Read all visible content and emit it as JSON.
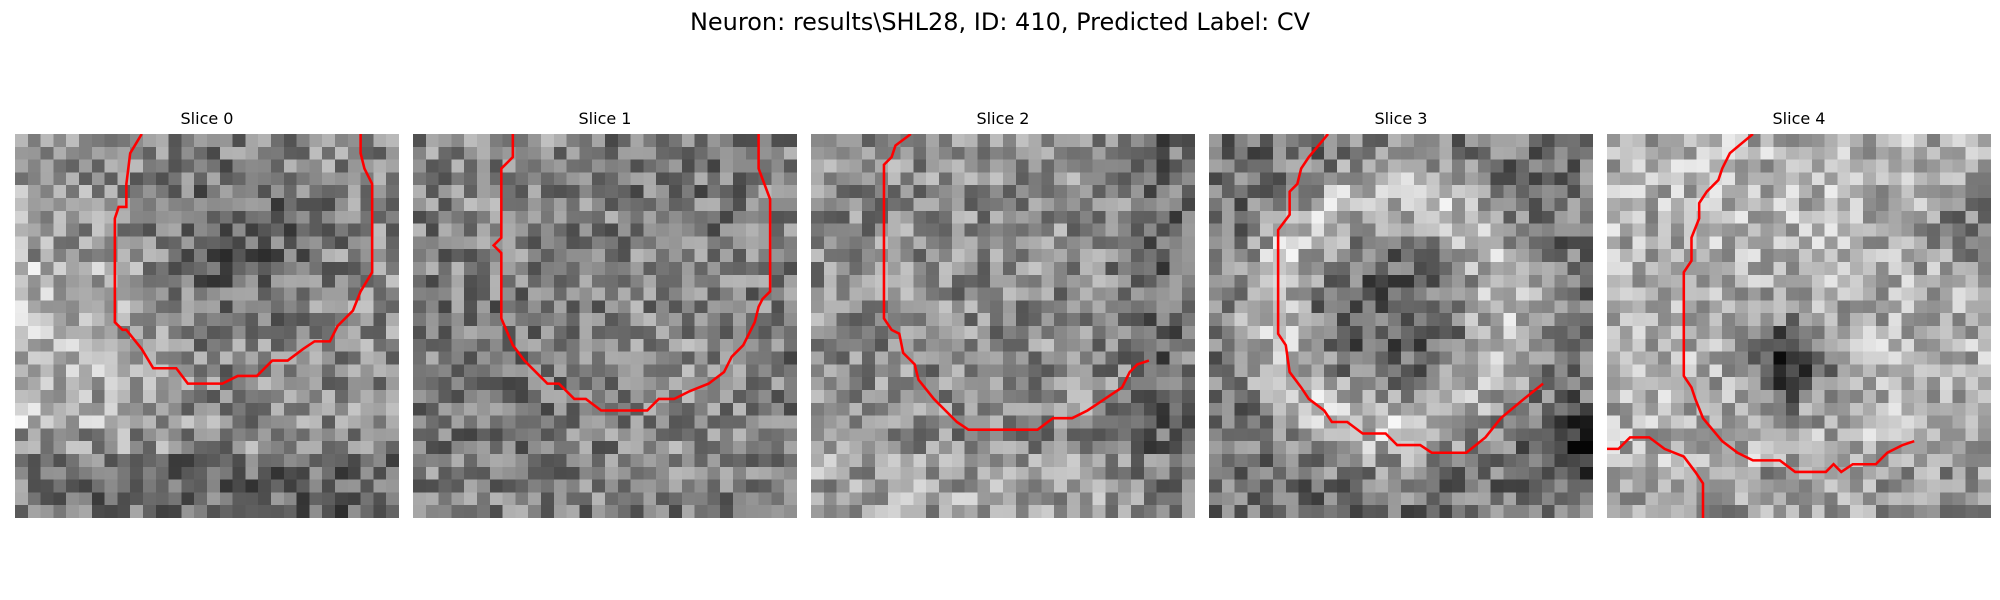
{
  "figure": {
    "suptitle": "Neuron: results\\SHL28, ID: 410, Predicted Label: CV"
  },
  "panels": [
    {
      "title": "Slice 0",
      "contour": [
        [
          3.3,
          0
        ],
        [
          3,
          0.5
        ],
        [
          2.9,
          1.3
        ],
        [
          2.9,
          1.9
        ],
        [
          2.7,
          1.9
        ],
        [
          2.6,
          2.2
        ],
        [
          2.6,
          4.6
        ],
        [
          2.6,
          4.9
        ],
        [
          2.8,
          5.1
        ],
        [
          2.9,
          5.1
        ],
        [
          3.3,
          5.6
        ],
        [
          3.6,
          6.1
        ],
        [
          4.2,
          6.1
        ],
        [
          4.5,
          6.5
        ],
        [
          5.4,
          6.5
        ],
        [
          5.8,
          6.3
        ],
        [
          6.3,
          6.3
        ],
        [
          6.7,
          5.9
        ],
        [
          7.1,
          5.9
        ],
        [
          7.5,
          5.6
        ],
        [
          7.8,
          5.4
        ],
        [
          8.2,
          5.4
        ],
        [
          8.4,
          5.0
        ],
        [
          8.8,
          4.6
        ],
        [
          9.0,
          4.1
        ],
        [
          9.3,
          3.6
        ],
        [
          9.3,
          1.3
        ],
        [
          9.1,
          0.9
        ],
        [
          9.0,
          0.5
        ],
        [
          9.0,
          0
        ]
      ],
      "image_style": "upper-left bright field, dark center"
    },
    {
      "title": "Slice 1",
      "contour": [
        [
          2.6,
          0
        ],
        [
          2.6,
          0.6
        ],
        [
          2.3,
          0.9
        ],
        [
          2.3,
          2.7
        ],
        [
          2.1,
          2.9
        ],
        [
          2.3,
          3.1
        ],
        [
          2.3,
          4.8
        ],
        [
          2.6,
          5.5
        ],
        [
          2.9,
          5.9
        ],
        [
          3.3,
          6.3
        ],
        [
          3.5,
          6.5
        ],
        [
          3.8,
          6.5
        ],
        [
          4.2,
          6.9
        ],
        [
          4.5,
          6.9
        ],
        [
          4.9,
          7.2
        ],
        [
          6.1,
          7.2
        ],
        [
          6.4,
          6.9
        ],
        [
          6.8,
          6.9
        ],
        [
          7.2,
          6.7
        ],
        [
          7.7,
          6.5
        ],
        [
          8.1,
          6.2
        ],
        [
          8.3,
          5.8
        ],
        [
          8.6,
          5.5
        ],
        [
          8.9,
          4.9
        ],
        [
          9.0,
          4.5
        ],
        [
          9.1,
          4.3
        ],
        [
          9.3,
          4.1
        ],
        [
          9.3,
          1.7
        ],
        [
          9.0,
          0.9
        ],
        [
          9.0,
          0
        ]
      ],
      "image_style": "noisy texture"
    },
    {
      "title": "Slice 2",
      "contour": [
        [
          2.6,
          0
        ],
        [
          2.2,
          0.3
        ],
        [
          2.1,
          0.6
        ],
        [
          1.9,
          0.8
        ],
        [
          1.9,
          4.8
        ],
        [
          2.1,
          5.1
        ],
        [
          2.3,
          5.2
        ],
        [
          2.4,
          5.7
        ],
        [
          2.7,
          6.0
        ],
        [
          2.8,
          6.4
        ],
        [
          3.2,
          6.9
        ],
        [
          3.5,
          7.2
        ],
        [
          3.8,
          7.5
        ],
        [
          4.1,
          7.7
        ],
        [
          5.9,
          7.7
        ],
        [
          6.3,
          7.4
        ],
        [
          6.8,
          7.4
        ],
        [
          7.2,
          7.2
        ],
        [
          7.5,
          7.0
        ],
        [
          7.8,
          6.8
        ],
        [
          8.1,
          6.6
        ],
        [
          8.3,
          6.2
        ],
        [
          8.5,
          6.0
        ],
        [
          8.8,
          5.9
        ]
      ],
      "image_style": "mottled texture, dark right edge"
    },
    {
      "title": "Slice 3",
      "contour": [
        [
          3.1,
          0
        ],
        [
          2.6,
          0.6
        ],
        [
          2.4,
          0.9
        ],
        [
          2.3,
          1.3
        ],
        [
          2.1,
          1.5
        ],
        [
          2.1,
          2.1
        ],
        [
          1.8,
          2.5
        ],
        [
          1.8,
          5.2
        ],
        [
          2.0,
          5.5
        ],
        [
          2.1,
          6.2
        ],
        [
          2.4,
          6.6
        ],
        [
          2.6,
          6.9
        ],
        [
          3.0,
          7.2
        ],
        [
          3.2,
          7.5
        ],
        [
          3.6,
          7.5
        ],
        [
          4.0,
          7.8
        ],
        [
          4.6,
          7.8
        ],
        [
          4.9,
          8.1
        ],
        [
          5.5,
          8.1
        ],
        [
          5.8,
          8.3
        ],
        [
          6.7,
          8.3
        ],
        [
          7.2,
          7.9
        ],
        [
          7.6,
          7.4
        ],
        [
          8.2,
          6.9
        ],
        [
          8.7,
          6.5
        ]
      ],
      "image_style": "bright ring around dark interior"
    },
    {
      "title": "Slice 4",
      "contour": [
        [
          3.8,
          0
        ],
        [
          3.2,
          0.5
        ],
        [
          3.0,
          0.9
        ],
        [
          2.9,
          1.2
        ],
        [
          2.6,
          1.5
        ],
        [
          2.4,
          1.8
        ],
        [
          2.4,
          2.2
        ],
        [
          2.2,
          2.7
        ],
        [
          2.2,
          3.3
        ],
        [
          2.0,
          3.6
        ],
        [
          2.0,
          6.3
        ],
        [
          2.2,
          6.6
        ],
        [
          2.3,
          6.9
        ],
        [
          2.5,
          7.4
        ],
        [
          3.0,
          8.0
        ],
        [
          3.4,
          8.3
        ],
        [
          3.8,
          8.5
        ],
        [
          4.5,
          8.5
        ],
        [
          4.9,
          8.8
        ],
        [
          5.7,
          8.8
        ],
        [
          5.9,
          8.6
        ],
        [
          6.1,
          8.8
        ],
        [
          6.4,
          8.6
        ],
        [
          7.0,
          8.6
        ],
        [
          7.3,
          8.3
        ],
        [
          7.7,
          8.1
        ],
        [
          8.0,
          8.0
        ]
      ],
      "contour2": [
        [
          0,
          8.2
        ],
        [
          0.3,
          8.2
        ],
        [
          0.6,
          7.9
        ],
        [
          1.1,
          7.9
        ],
        [
          1.5,
          8.2
        ],
        [
          2.0,
          8.4
        ],
        [
          2.3,
          8.8
        ],
        [
          2.5,
          9.1
        ],
        [
          2.5,
          10
        ]
      ],
      "image_style": "dark blob center, bright surroundings"
    }
  ]
}
